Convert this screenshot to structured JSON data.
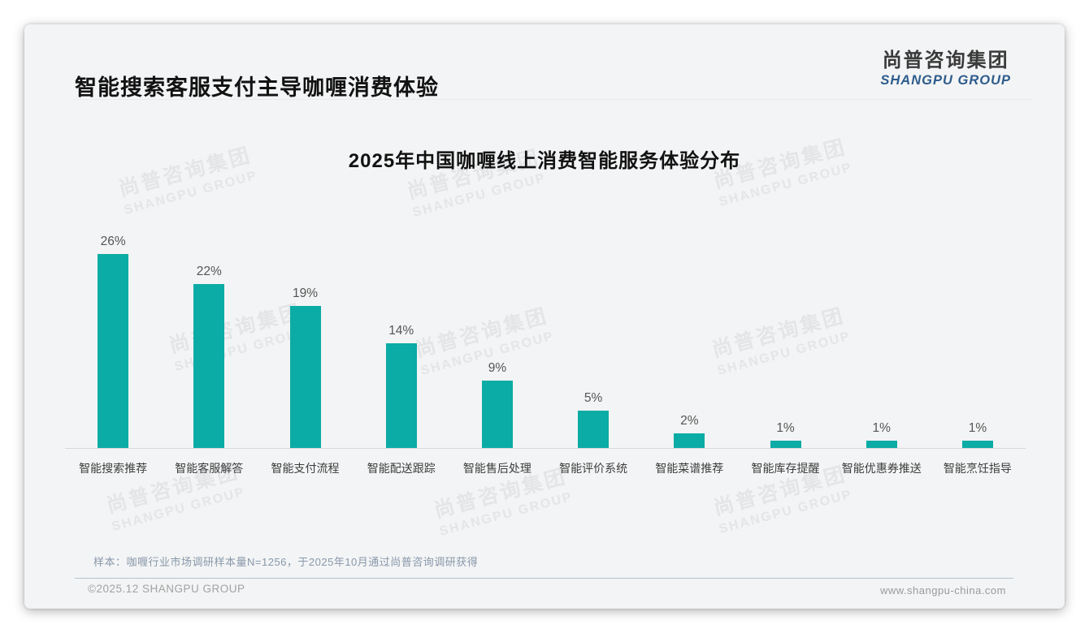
{
  "page": {
    "title": "智能搜索客服支付主导咖喱消费体验",
    "logo": {
      "cn": "尚普咨询集团",
      "en": "SHANGPU GROUP"
    },
    "watermark": {
      "cn": "尚普咨询集团",
      "en": "SHANGPU GROUP"
    },
    "footnote": "样本：咖喱行业市场调研样本量N=1256，于2025年10月通过尚普咨询调研获得",
    "footer_left": "©2025.12 SHANGPU GROUP",
    "footer_right": "www.shangpu-china.com"
  },
  "chart_data": {
    "type": "bar",
    "title": "2025年中国咖喱线上消费智能服务体验分布",
    "categories": [
      "智能搜索推荐",
      "智能客服解答",
      "智能支付流程",
      "智能配送跟踪",
      "智能售后处理",
      "智能评价系统",
      "智能菜谱推荐",
      "智能库存提醒",
      "智能优惠券推送",
      "智能烹饪指导"
    ],
    "values": [
      26,
      22,
      19,
      14,
      9,
      5,
      2,
      1,
      1,
      1
    ],
    "value_labels": [
      "26%",
      "22%",
      "19%",
      "14%",
      "9%",
      "5%",
      "2%",
      "1%",
      "1%",
      "1%"
    ],
    "unit": "%",
    "xlabel": "",
    "ylabel": "",
    "ylim": [
      0,
      28
    ],
    "grid": false,
    "legend": false,
    "bar_color": "#0baca5",
    "axis_color": "#d8d8d8",
    "value_label_color": "#555555",
    "category_label_color": "#3d3d3d"
  },
  "colors": {
    "card_bg": "#f3f4f5",
    "page_bg": "#ffffff",
    "accent_teal": "#0baca5",
    "logo_blue": "#2d5c8c",
    "footnote_gray_blue": "#8898aa",
    "footer_gray": "#a2a2a2",
    "divider_blue_gray": "#b5c2cf"
  }
}
